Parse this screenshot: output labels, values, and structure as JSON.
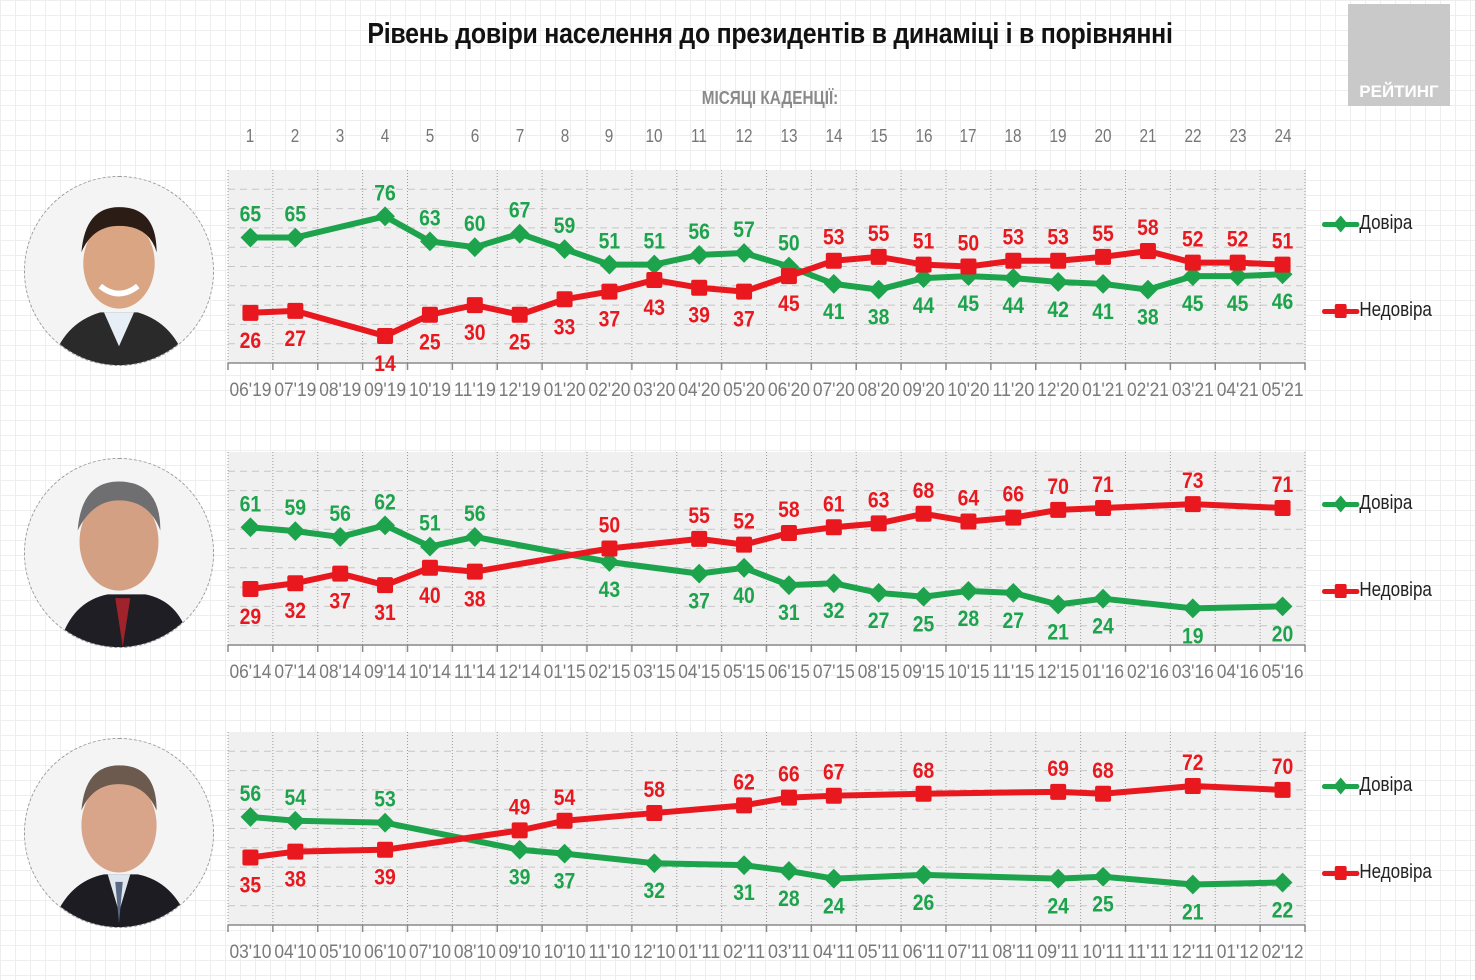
{
  "title": "Рівень довіри населення до президентів в динаміці і в порівнянні",
  "logo_text": "РЕЙТИНГ",
  "months_caption": "МІСЯЦІ КАДЕНЦІЇ:",
  "colors": {
    "trust": "#1ca34c",
    "distrust": "#e8181e",
    "plot_bg": "#f0f0f0",
    "grid": "#c6c6c6",
    "axis_text": "#7a7a7a"
  },
  "legend": {
    "trust": "Довіра",
    "distrust": "Недовіра"
  },
  "chart_data": [
    {
      "type": "line",
      "president_photo": "president-zelensky-photo",
      "title": "",
      "xlabel": "Місяці каденції",
      "ylabel": "",
      "ylim": [
        0,
        100
      ],
      "grid": true,
      "legend_position": "right",
      "month_numbers": [
        "1",
        "2",
        "3",
        "4",
        "5",
        "6",
        "7",
        "8",
        "9",
        "10",
        "11",
        "12",
        "13",
        "14",
        "15",
        "16",
        "17",
        "18",
        "19",
        "20",
        "21",
        "22",
        "23",
        "24"
      ],
      "categories": [
        "06'19",
        "07'19",
        "08'19",
        "09'19",
        "10'19",
        "11'19",
        "12'19",
        "01'20",
        "02'20",
        "03'20",
        "04'20",
        "05'20",
        "06'20",
        "07'20",
        "08'20",
        "09'20",
        "10'20",
        "11'20",
        "12'20",
        "01'21",
        "02'21",
        "03'21",
        "04'21",
        "05'21"
      ],
      "series": [
        {
          "name": "Довіра",
          "key": "trust",
          "values": [
            65,
            65,
            null,
            76,
            63,
            60,
            67,
            59,
            51,
            51,
            56,
            57,
            50,
            41,
            38,
            44,
            45,
            44,
            42,
            41,
            38,
            45,
            45,
            46
          ]
        },
        {
          "name": "Недовіра",
          "key": "distrust",
          "values": [
            26,
            27,
            null,
            14,
            25,
            30,
            25,
            33,
            37,
            43,
            39,
            37,
            45,
            53,
            55,
            51,
            50,
            53,
            53,
            55,
            58,
            52,
            52,
            51
          ]
        }
      ]
    },
    {
      "type": "line",
      "president_photo": "president-poroshenko-photo",
      "title": "",
      "xlabel": "Місяці каденції",
      "ylabel": "",
      "ylim": [
        0,
        100
      ],
      "grid": true,
      "legend_position": "right",
      "categories": [
        "06'14",
        "07'14",
        "08'14",
        "09'14",
        "10'14",
        "11'14",
        "12'14",
        "01'15",
        "02'15",
        "03'15",
        "04'15",
        "05'15",
        "06'15",
        "07'15",
        "08'15",
        "09'15",
        "10'15",
        "11'15",
        "12'15",
        "01'16",
        "02'16",
        "03'16",
        "04'16",
        "05'16"
      ],
      "series": [
        {
          "name": "Довіра",
          "key": "trust",
          "values": [
            61,
            59,
            56,
            62,
            51,
            56,
            null,
            null,
            43,
            null,
            37,
            40,
            31,
            32,
            27,
            25,
            28,
            27,
            21,
            24,
            null,
            19,
            null,
            20
          ]
        },
        {
          "name": "Недовіра",
          "key": "distrust",
          "values": [
            29,
            32,
            37,
            31,
            40,
            38,
            null,
            null,
            50,
            null,
            55,
            52,
            58,
            61,
            63,
            68,
            64,
            66,
            70,
            71,
            null,
            73,
            null,
            71
          ]
        }
      ]
    },
    {
      "type": "line",
      "president_photo": "president-yanukovych-photo",
      "title": "",
      "xlabel": "Місяці каденції",
      "ylabel": "",
      "ylim": [
        0,
        100
      ],
      "grid": true,
      "legend_position": "right",
      "categories": [
        "03'10",
        "04'10",
        "05'10",
        "06'10",
        "07'10",
        "08'10",
        "09'10",
        "10'10",
        "11'10",
        "12'10",
        "01'11",
        "02'11",
        "03'11",
        "04'11",
        "05'11",
        "06'11",
        "07'11",
        "08'11",
        "09'11",
        "10'11",
        "11'11",
        "12'11",
        "01'12",
        "02'12"
      ],
      "series": [
        {
          "name": "Довіра",
          "key": "trust",
          "values": [
            56,
            54,
            null,
            53,
            null,
            null,
            39,
            37,
            null,
            32,
            null,
            31,
            28,
            24,
            null,
            26,
            null,
            null,
            24,
            25,
            null,
            21,
            null,
            22
          ]
        },
        {
          "name": "Недовіра",
          "key": "distrust",
          "values": [
            35,
            38,
            null,
            39,
            null,
            null,
            49,
            54,
            null,
            58,
            null,
            62,
            66,
            67,
            null,
            68,
            null,
            null,
            69,
            68,
            null,
            72,
            null,
            70
          ]
        }
      ]
    }
  ]
}
